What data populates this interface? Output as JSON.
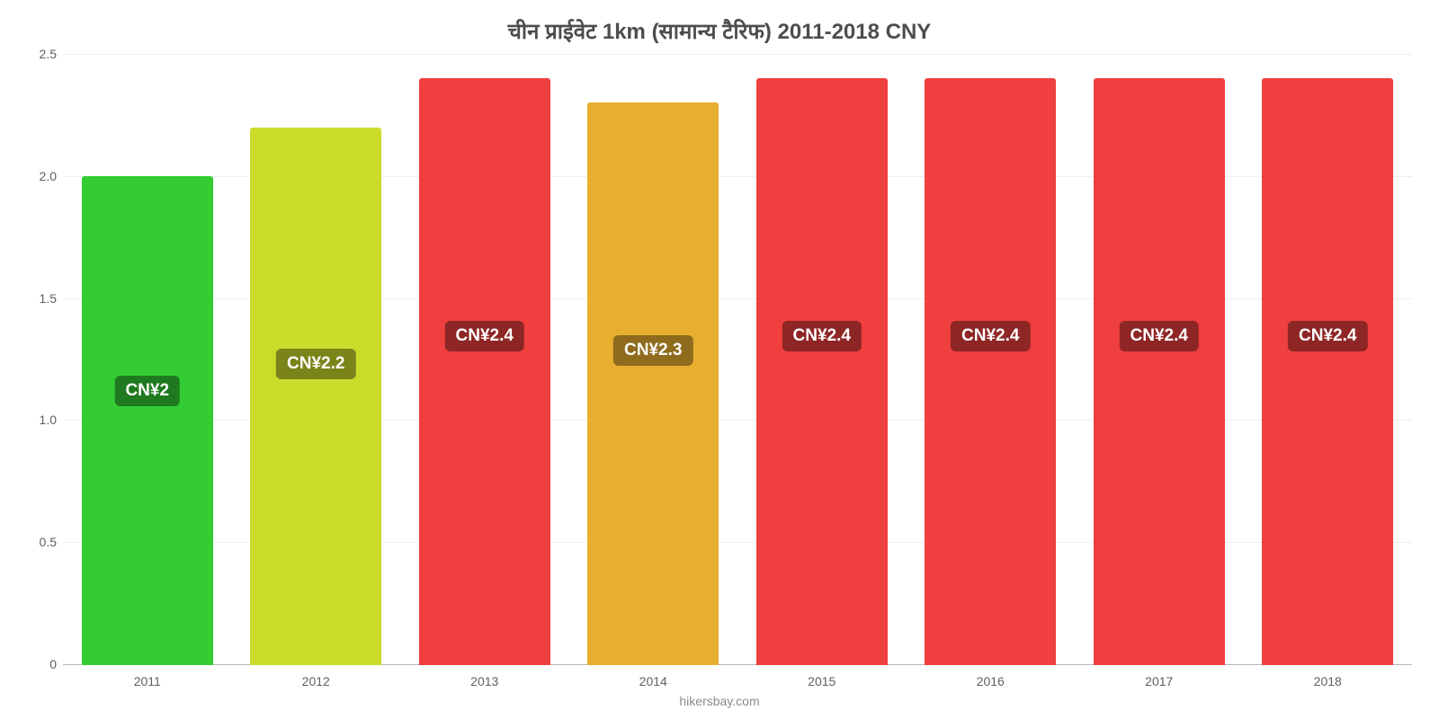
{
  "chart": {
    "type": "bar",
    "title": "चीन प्राईवेट 1km (सामान्य टैरिफ) 2011-2018 CNY",
    "title_fontsize": 24,
    "title_color": "#4d4d4d",
    "background_color": "#ffffff",
    "gridline_color": "#eeeeee",
    "axis_label_color": "#606060",
    "axis_label_fontsize": 14,
    "categories": [
      "2011",
      "2012",
      "2013",
      "2014",
      "2015",
      "2016",
      "2017",
      "2018"
    ],
    "values": [
      2.0,
      2.2,
      2.4,
      2.3,
      2.4,
      2.4,
      2.4,
      2.4
    ],
    "bar_colors": [
      "#33cc33",
      "#cbdb2a",
      "#ef3f3e",
      "#e8ae30",
      "#ef3f3e",
      "#ef3f3e",
      "#ef3f3e",
      "#ef3f3e"
    ],
    "value_labels": [
      "CN¥2",
      "CN¥2.2",
      "CN¥2.4",
      "CN¥2.3",
      "CN¥2.4",
      "CN¥2.4",
      "CN¥2.4",
      "CN¥2.4"
    ],
    "value_label_bg_colors": [
      "#1f7a1f",
      "#7a8419",
      "#8e2625",
      "#8e6b1d",
      "#8e2625",
      "#8e2625",
      "#8e2625",
      "#8e2625"
    ],
    "value_label_text_color": "#ffffff",
    "value_label_fontsize": 19,
    "ylim": [
      0,
      2.5
    ],
    "yticks": [
      0,
      0.5,
      1.0,
      1.5,
      2.0,
      2.5
    ],
    "ytick_labels": [
      "0",
      "0.5",
      "1.0",
      "1.5",
      "2.0",
      "2.5"
    ],
    "bar_width": 0.78,
    "attribution": "hikersbay.com",
    "attribution_color": "#8a8a8a",
    "attribution_fontsize": 14
  }
}
